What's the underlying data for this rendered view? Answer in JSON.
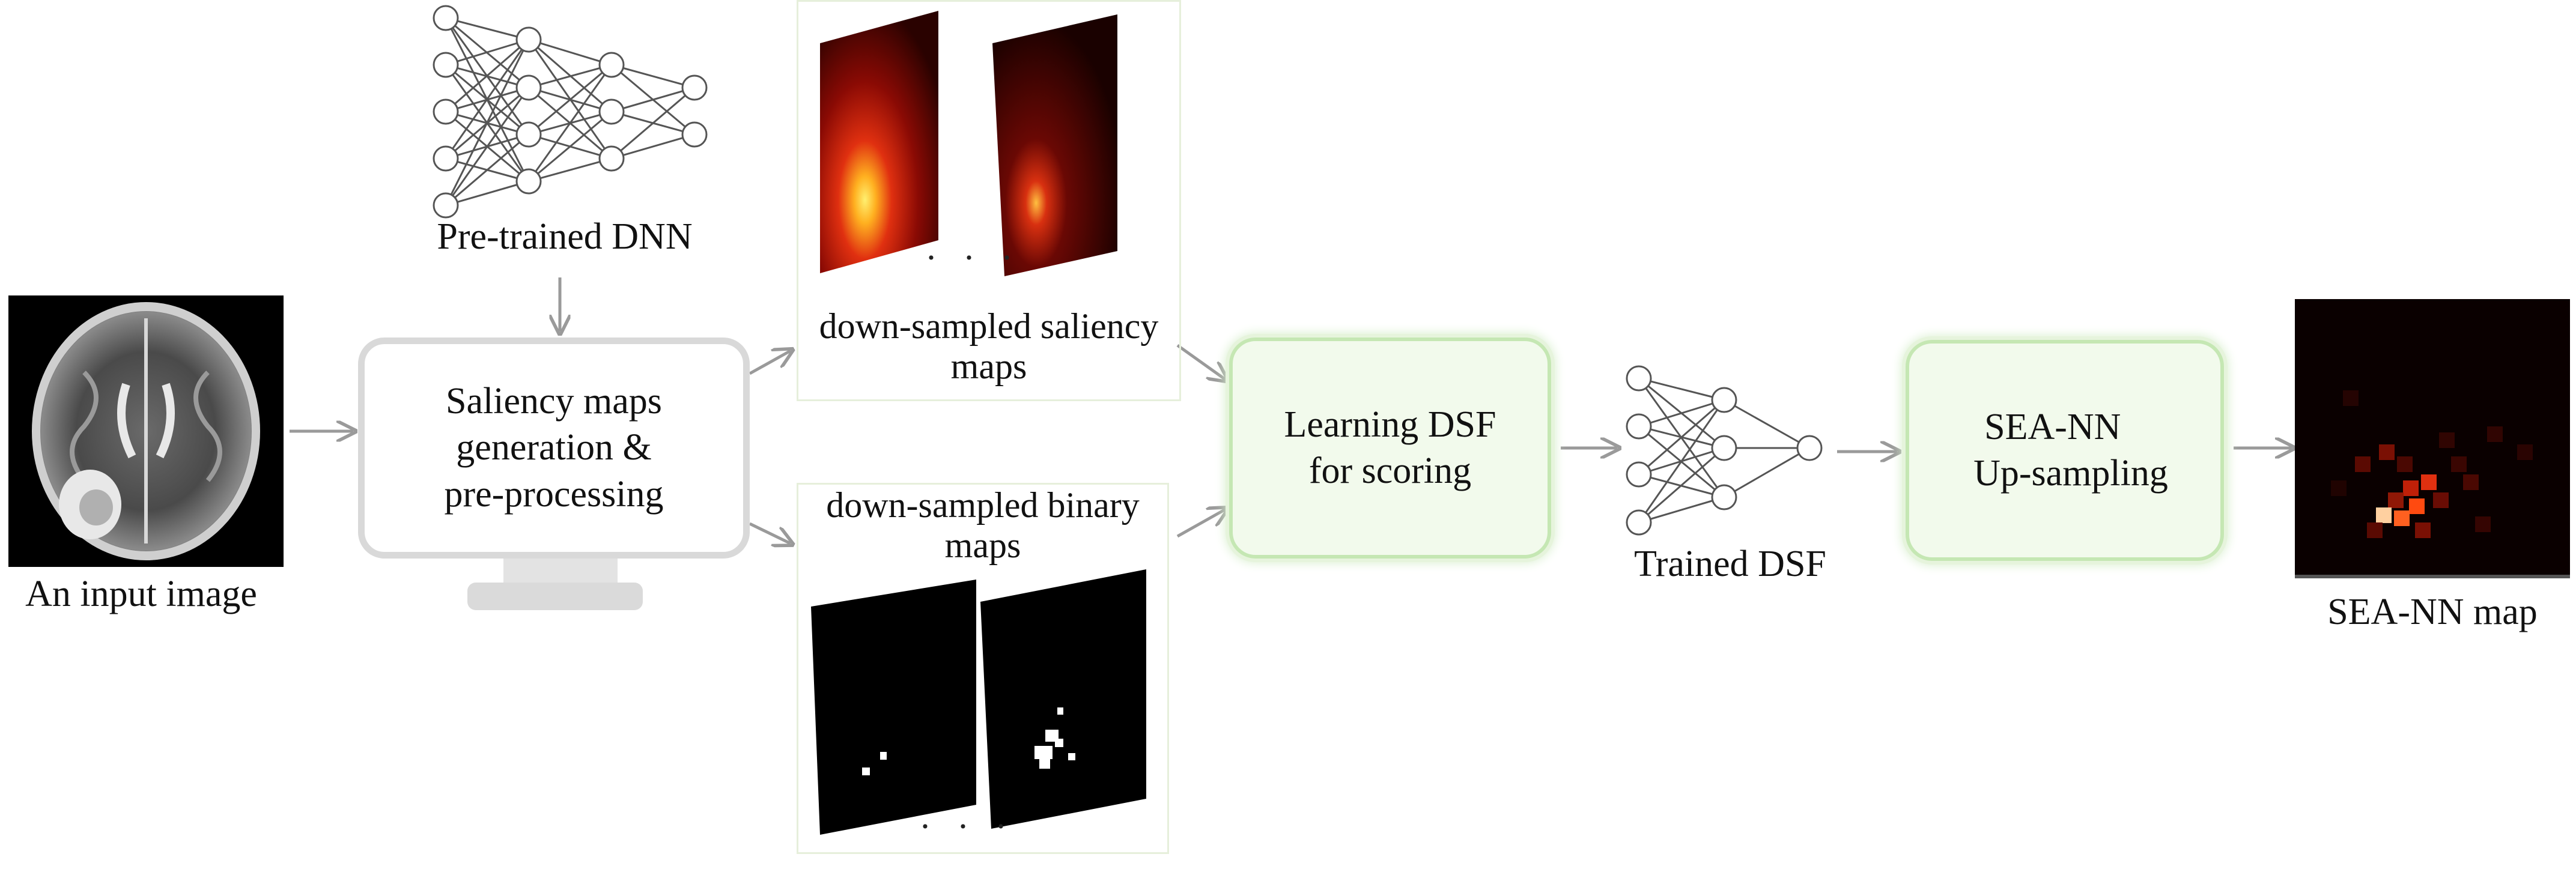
{
  "labels": {
    "input_image": "An input image",
    "pretrained_dnn": "Pre-trained DNN",
    "saliency_box_line1": "Saliency maps",
    "saliency_box_line2": "generation &",
    "saliency_box_line3": "pre-processing",
    "downsampled_saliency": "down-sampled saliency maps",
    "downsampled_binary": "down-sampled binary maps",
    "learning_line1": "Learning DSF",
    "learning_line2": "for scoring",
    "trained_dsf": "Trained DSF",
    "upsample_line1": "SEA-NN",
    "upsample_line2": "Up-sampling",
    "output_map": "SEA-NN map",
    "ellipsis": "· · ·"
  },
  "colors": {
    "arrow": "#9a9a9a",
    "green_arrow": "#5aa832",
    "gray_box_border": "#d9d9d9",
    "green_box_border": "#c5e7b3",
    "green_box_fill": "#f2faec"
  }
}
